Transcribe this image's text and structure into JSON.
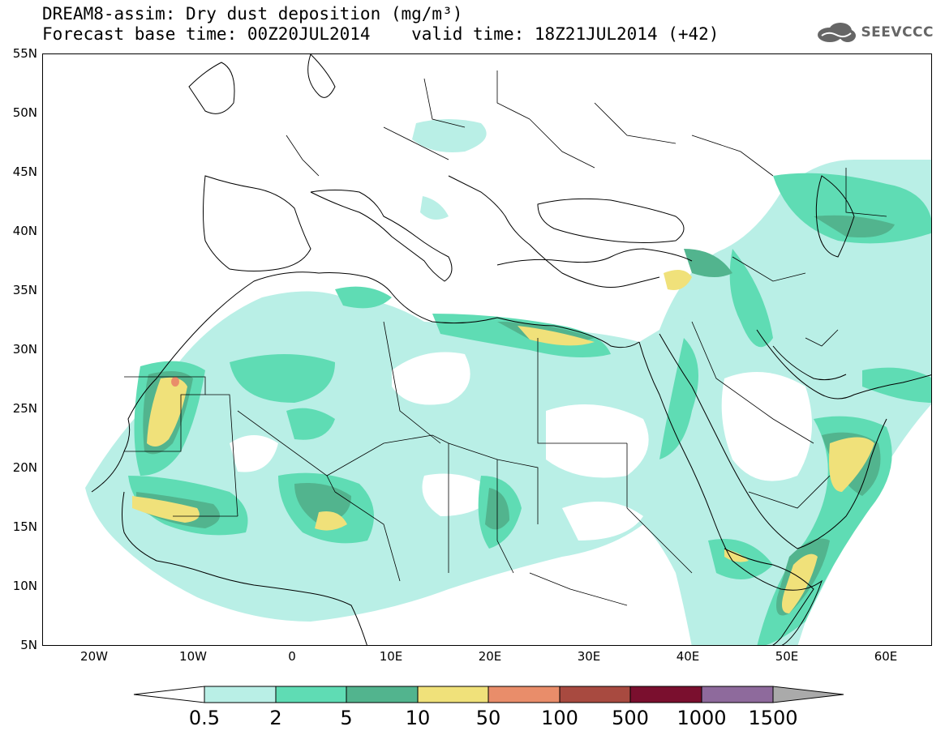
{
  "title_line1": "DREAM8-assim: Dry dust deposition (mg/m³)",
  "title_line2": "Forecast base time: 00Z20JUL2014    valid time: 18Z21JUL2014 (+42)",
  "logo_text": "SEEVCCC",
  "lat_labels": [
    "55N",
    "50N",
    "45N",
    "40N",
    "35N",
    "30N",
    "25N",
    "20N",
    "15N",
    "10N",
    "5N"
  ],
  "lon_labels": [
    "20W",
    "10W",
    "0",
    "10E",
    "20E",
    "30E",
    "40E",
    "50E",
    "60E"
  ],
  "colorbar": {
    "labels": [
      "0.5",
      "2",
      "5",
      "10",
      "50",
      "100",
      "500",
      "1000",
      "1500"
    ],
    "colors": [
      "#b9efe6",
      "#5fdcb4",
      "#52b48e",
      "#f0e17a",
      "#e98d6a",
      "#a84a40",
      "#7a0f2e",
      "#8e6a9c"
    ],
    "under_color": "#ffffff",
    "over_color": "#aaaaaa"
  },
  "map": {
    "lon_range": [
      -25,
      65
    ],
    "lat_range": [
      5,
      55
    ],
    "field": "dry dust deposition",
    "units": "mg/m³"
  }
}
